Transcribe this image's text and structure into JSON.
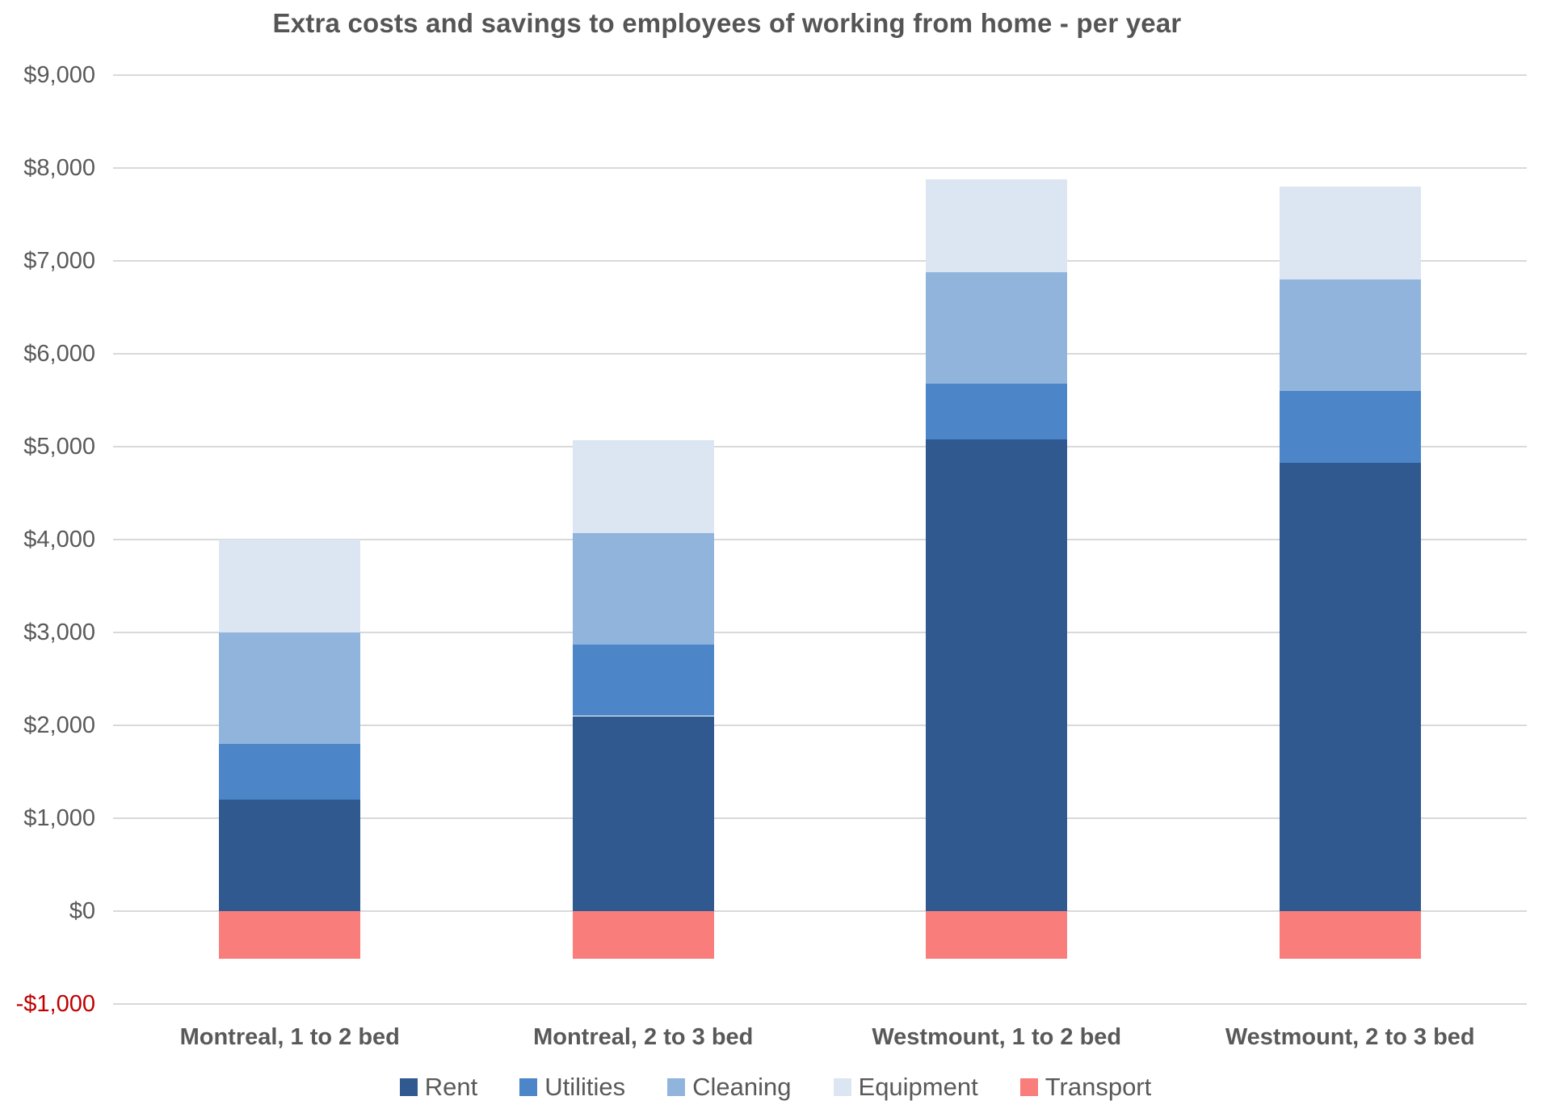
{
  "chart_data": {
    "type": "bar",
    "stacked": true,
    "title": "Extra costs and savings to employees of working from home - per year",
    "categories": [
      "Montreal, 1 to 2 bed",
      "Montreal, 2 to 3 bed",
      "Westmount, 1 to 2 bed",
      "Westmount, 2 to 3 bed"
    ],
    "series": [
      {
        "name": "Rent",
        "color": "#30598F",
        "values": [
          1200,
          2100,
          5080,
          4830
        ]
      },
      {
        "name": "Utilities",
        "color": "#4C86C8",
        "values": [
          600,
          770,
          600,
          770
        ]
      },
      {
        "name": "Cleaning",
        "color": "#91B4DD",
        "values": [
          1200,
          1200,
          1200,
          1200
        ]
      },
      {
        "name": "Equipment",
        "color": "#DCE6F2",
        "values": [
          1000,
          1000,
          1000,
          1000
        ]
      },
      {
        "name": "Transport",
        "color": "#F97D7B",
        "values": [
          -510,
          -510,
          -510,
          -510
        ]
      }
    ],
    "totals_positive": [
      4000,
      5070,
      7880,
      7800
    ],
    "y_axis": {
      "min": -1000,
      "max": 9000,
      "step": 1000,
      "tick_labels": [
        "$9,000",
        "$8,000",
        "$7,000",
        "$6,000",
        "$5,000",
        "$4,000",
        "$3,000",
        "$2,000",
        "$1,000",
        "$0",
        "-$1,000"
      ],
      "tick_color": "#595959",
      "negative_tick_color": "#C00000"
    },
    "grid": true,
    "gridline_color": "#D9D9D9",
    "legend_position": "bottom",
    "background_color": "#FFFFFF"
  }
}
